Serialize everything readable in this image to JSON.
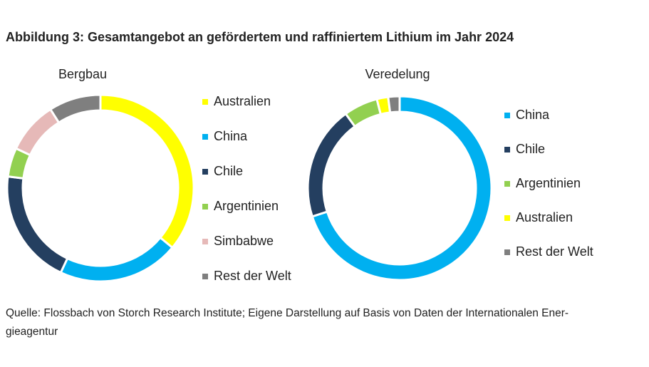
{
  "title": "Abbildung 3: Gesamtangebot an gefördertem und raffiniertem Lithium im Jahr 2024",
  "source": [
    "Quelle: Flossbach von Storch Research Institute; Eigene Darstellung auf Basis von Daten der Internationalen Ener-",
    "gieagentur"
  ],
  "chart_data": [
    {
      "type": "donut",
      "title": "Bergbau",
      "categories": [
        "Australien",
        "China",
        "Chile",
        "Argentinien",
        "Simbabwe",
        "Rest der Welt"
      ],
      "values": [
        36,
        21,
        20,
        5,
        9,
        9
      ],
      "colors": [
        "#ffff00",
        "#00b0f0",
        "#243f60",
        "#92d050",
        "#e6b9b8",
        "#7f7f7f"
      ]
    },
    {
      "type": "donut",
      "title": "Veredelung",
      "categories": [
        "China",
        "Chile",
        "Argentinien",
        "Australien",
        "Rest der Welt"
      ],
      "values": [
        70,
        20,
        6,
        2,
        2
      ],
      "colors": [
        "#00b0f0",
        "#243f60",
        "#92d050",
        "#ffff00",
        "#7f7f7f"
      ]
    }
  ]
}
